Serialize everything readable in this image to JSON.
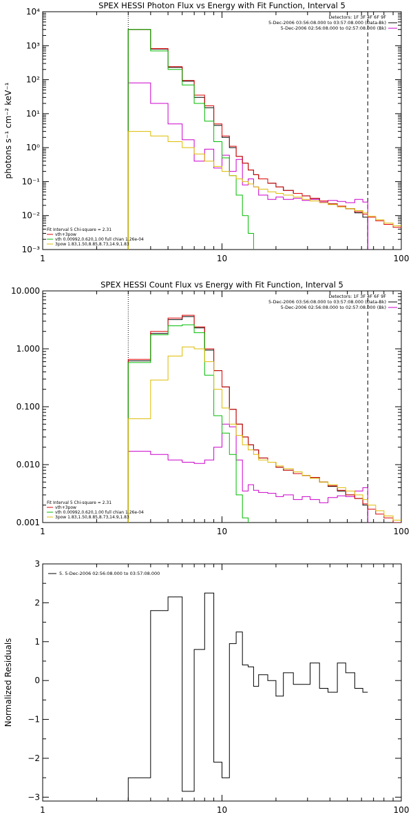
{
  "chart_data": [
    {
      "type": "line",
      "title": "SPEX HESSI Photon Flux vs Energy with Fit Function, Interval 5",
      "ylabel": "photons s⁻¹ cm⁻² keV⁻¹",
      "xlabel": "",
      "xscale": "log",
      "yscale": "log",
      "xlim": [
        1,
        100
      ],
      "ylim": [
        0.001,
        10000
      ],
      "xticks": [
        {
          "v": 1,
          "label": "1"
        },
        {
          "v": 10,
          "label": "10"
        },
        {
          "v": 100,
          "label": "100"
        }
      ],
      "yticks": [
        {
          "v": 0.001,
          "label": "10⁻³"
        },
        {
          "v": 0.01,
          "label": "10⁻²"
        },
        {
          "v": 0.1,
          "label": "10⁻¹"
        },
        {
          "v": 1,
          "label": "10⁰"
        },
        {
          "v": 10,
          "label": "10¹"
        },
        {
          "v": 100,
          "label": "10²"
        },
        {
          "v": 1000,
          "label": "10³"
        },
        {
          "v": 10000,
          "label": "10⁴"
        }
      ],
      "legend_top_right": [
        {
          "text": "Detectors: 1F 3F 4F 6F 9F",
          "color": "#000000",
          "line": false
        },
        {
          "text": "5-Dec-2006 03:56:08.000 to 03:57:08.000 (Data-Bk)",
          "color": "#000000",
          "line": true
        },
        {
          "text": "5-Dec-2006 02:56:08.000 to 02:57:08.000 (Bk)",
          "color": "#cc00cc",
          "line": true
        }
      ],
      "legend_bottom_left": [
        {
          "text": "Fit Interval 5   Chi-square = 2.31",
          "color": "#000000",
          "line": false
        },
        {
          "text": "vth+3pow",
          "color": "#dd0000",
          "line": true
        },
        {
          "text": "vth 0.00992,0.620,1.00   full chian 1.26e-04",
          "color": "#00bb00",
          "line": true
        },
        {
          "text": "3pow 1.83,1.50,8.85,8.73,14.9,1.83",
          "color": "#ddbb00",
          "line": true
        }
      ],
      "vlines": [
        {
          "x": 3.0,
          "style": "dotted"
        },
        {
          "x": 65,
          "style": "dashed"
        }
      ],
      "edges": [
        3,
        4,
        5,
        6,
        7,
        8,
        9,
        10,
        11,
        12,
        13,
        14,
        15,
        16,
        18,
        20,
        22,
        25,
        28,
        31,
        35,
        39,
        44,
        49,
        55,
        61,
        65,
        72,
        80,
        90,
        100
      ],
      "series": [
        {
          "color": "#000000",
          "values": [
            3000,
            800,
            230,
            90,
            30,
            15,
            4.5,
            2.0,
            1.0,
            0.55,
            0.35,
            0.22,
            0.16,
            0.12,
            0.09,
            0.07,
            0.055,
            0.045,
            0.038,
            0.032,
            0.027,
            0.022,
            0.019,
            0.016,
            0.012,
            0.009,
            null,
            null,
            null,
            null
          ]
        },
        {
          "color": "#cc00cc",
          "values": [
            80,
            20,
            5,
            1.7,
            0.4,
            0.9,
            0.25,
            0.6,
            0.2,
            0.45,
            0.08,
            0.12,
            0.07,
            0.04,
            0.03,
            0.035,
            0.03,
            0.032,
            0.028,
            0.03,
            0.025,
            0.028,
            0.026,
            0.024,
            0.03,
            0.025,
            null,
            null,
            null,
            null
          ]
        },
        {
          "color": "#dd0000",
          "values": [
            3000,
            820,
            240,
            95,
            35,
            17,
            5,
            2.2,
            1.1,
            0.55,
            0.35,
            0.22,
            0.16,
            0.12,
            0.09,
            0.07,
            0.055,
            0.045,
            0.038,
            0.032,
            0.027,
            0.022,
            0.019,
            0.016,
            0.013,
            0.011,
            0.009,
            0.007,
            0.0055,
            0.0045
          ]
        },
        {
          "color": "#00bb00",
          "values": [
            3000,
            700,
            200,
            70,
            20,
            6,
            1.5,
            0.5,
            0.15,
            0.04,
            0.01,
            0.003,
            0.0008,
            null,
            null,
            null,
            null,
            null,
            null,
            null,
            null,
            null,
            null,
            null,
            null,
            null,
            null,
            null,
            null,
            null
          ]
        },
        {
          "color": "#ddbb00",
          "values": [
            3,
            2.2,
            1.5,
            1.0,
            0.65,
            0.4,
            0.28,
            0.2,
            0.15,
            0.12,
            0.1,
            0.085,
            0.07,
            0.06,
            0.05,
            0.045,
            0.04,
            0.035,
            0.03,
            0.027,
            0.024,
            0.021,
            0.018,
            0.016,
            0.014,
            0.012,
            0.0095,
            0.0075,
            0.006,
            0.005
          ]
        }
      ]
    },
    {
      "type": "line",
      "title": "SPEX HESSI Count Flux vs Energy with Fit Function, Interval 5",
      "ylabel": "",
      "xlabel": "",
      "xscale": "log",
      "yscale": "log",
      "xlim": [
        1,
        100
      ],
      "ylim": [
        0.001,
        10
      ],
      "xticks": [
        {
          "v": 1,
          "label": "1"
        },
        {
          "v": 10,
          "label": "10"
        },
        {
          "v": 100,
          "label": "100"
        }
      ],
      "yticks": [
        {
          "v": 0.001,
          "label": "0.001"
        },
        {
          "v": 0.01,
          "label": "0.010"
        },
        {
          "v": 0.1,
          "label": "0.100"
        },
        {
          "v": 1,
          "label": "1.000"
        },
        {
          "v": 10,
          "label": "10.000"
        }
      ],
      "legend_top_right": [
        {
          "text": "Detectors: 1F 3F 4F 6F 9F",
          "color": "#000000",
          "line": false
        },
        {
          "text": "5-Dec-2006 03:56:08.000 to 03:57:08.000 (Data-Bk)",
          "color": "#000000",
          "line": true
        },
        {
          "text": "5-Dec-2006 02:56:08.000 to 02:57:08.000 (Bk)",
          "color": "#cc00cc",
          "line": true
        }
      ],
      "legend_bottom_left": [
        {
          "text": "Fit Interval 5   Chi-square = 2.31",
          "color": "#000000",
          "line": false
        },
        {
          "text": "vth+3pow",
          "color": "#dd0000",
          "line": true
        },
        {
          "text": "vth 0.00992,0.620,1.00   full chian 1.26e-04",
          "color": "#00bb00",
          "line": true
        },
        {
          "text": "3pow 1.83,1.50,8.85,8.73,14.9,1.83",
          "color": "#ddbb00",
          "line": true
        }
      ],
      "vlines": [
        {
          "x": 3.0,
          "style": "dotted"
        },
        {
          "x": 65,
          "style": "dashed"
        }
      ],
      "edges": [
        3,
        4,
        5,
        6,
        7,
        8,
        9,
        10,
        11,
        12,
        13,
        14,
        15,
        16,
        18,
        20,
        22,
        25,
        28,
        31,
        35,
        39,
        44,
        49,
        55,
        61,
        65,
        72,
        80,
        90,
        100
      ],
      "series": [
        {
          "color": "#000000",
          "values": [
            0.62,
            1.85,
            3.2,
            3.6,
            2.3,
            0.95,
            0.42,
            0.22,
            0.09,
            0.05,
            0.03,
            0.022,
            0.018,
            0.013,
            0.011,
            0.009,
            0.008,
            0.007,
            0.0065,
            0.006,
            0.005,
            0.0042,
            0.0035,
            0.003,
            0.0026,
            0.002,
            null,
            null,
            null,
            null
          ]
        },
        {
          "color": "#cc00cc",
          "values": [
            0.017,
            0.015,
            0.012,
            0.011,
            0.0105,
            0.012,
            0.02,
            0.05,
            0.045,
            0.012,
            0.0035,
            0.0045,
            0.0036,
            0.0033,
            0.0032,
            0.0028,
            0.003,
            0.0025,
            0.0028,
            0.0025,
            0.0022,
            0.0027,
            0.0029,
            0.0028,
            0.0035,
            0.004,
            null,
            null,
            null,
            null
          ]
        },
        {
          "color": "#dd0000",
          "values": [
            0.66,
            2.0,
            3.4,
            3.8,
            2.4,
            1.0,
            0.42,
            0.22,
            0.09,
            0.05,
            0.03,
            0.022,
            0.018,
            0.013,
            0.011,
            0.009,
            0.008,
            0.007,
            0.0065,
            0.006,
            0.005,
            0.0043,
            0.0036,
            0.003,
            0.0026,
            0.0021,
            0.0017,
            0.0014,
            0.0012,
            0.001
          ]
        },
        {
          "color": "#00bb00",
          "values": [
            0.58,
            1.75,
            2.5,
            2.6,
            1.9,
            0.35,
            0.07,
            0.035,
            0.015,
            0.003,
            0.0012,
            null,
            null,
            null,
            null,
            null,
            null,
            null,
            null,
            null,
            null,
            null,
            null,
            null,
            null,
            null,
            null,
            null,
            null,
            null
          ]
        },
        {
          "color": "#ddbb00",
          "values": [
            0.062,
            0.29,
            0.75,
            1.08,
            1.0,
            0.6,
            0.2,
            0.095,
            0.05,
            0.032,
            0.022,
            0.018,
            0.015,
            0.012,
            0.011,
            0.0095,
            0.0085,
            0.0075,
            0.0065,
            0.0058,
            0.005,
            0.0045,
            0.004,
            0.0035,
            0.003,
            0.0025,
            0.002,
            0.0016,
            0.0013,
            0.0011
          ]
        }
      ]
    },
    {
      "type": "line",
      "title": "",
      "ylabel": "Normalized Residuals",
      "xlabel": "",
      "xscale": "log",
      "yscale": "linear",
      "xlim": [
        1,
        100
      ],
      "ylim": [
        -3.1,
        3
      ],
      "xticks": [
        {
          "v": 1,
          "label": "1"
        },
        {
          "v": 10,
          "label": "10"
        },
        {
          "v": 100,
          "label": "100"
        }
      ],
      "yticks": [
        {
          "v": -3,
          "label": "−3"
        },
        {
          "v": -2,
          "label": "−2"
        },
        {
          "v": -1,
          "label": "−1"
        },
        {
          "v": 0,
          "label": "0"
        },
        {
          "v": 1,
          "label": "1"
        },
        {
          "v": 2,
          "label": "2"
        },
        {
          "v": 3,
          "label": "3"
        }
      ],
      "legend_top_left": [
        {
          "text": "5.  5-Dec-2006 02:56:08.000 to 03:57:08.000",
          "color": "#000000",
          "line": true
        }
      ],
      "vlines": [],
      "edges": [
        3,
        4,
        5,
        6,
        7,
        8,
        9,
        10,
        11,
        12,
        13,
        14,
        15,
        16,
        18,
        20,
        22,
        25,
        28,
        31,
        35,
        39,
        44,
        49,
        55,
        61,
        65
      ],
      "series": [
        {
          "color": "#000000",
          "values": [
            -2.5,
            1.8,
            2.15,
            -2.85,
            0.8,
            2.25,
            -2.1,
            -2.5,
            0.95,
            1.25,
            0.4,
            0.35,
            -0.15,
            0.15,
            0.0,
            -0.4,
            0.2,
            -0.1,
            -0.1,
            0.45,
            -0.2,
            -0.3,
            0.45,
            0.2,
            -0.2,
            -0.3
          ]
        }
      ]
    }
  ]
}
